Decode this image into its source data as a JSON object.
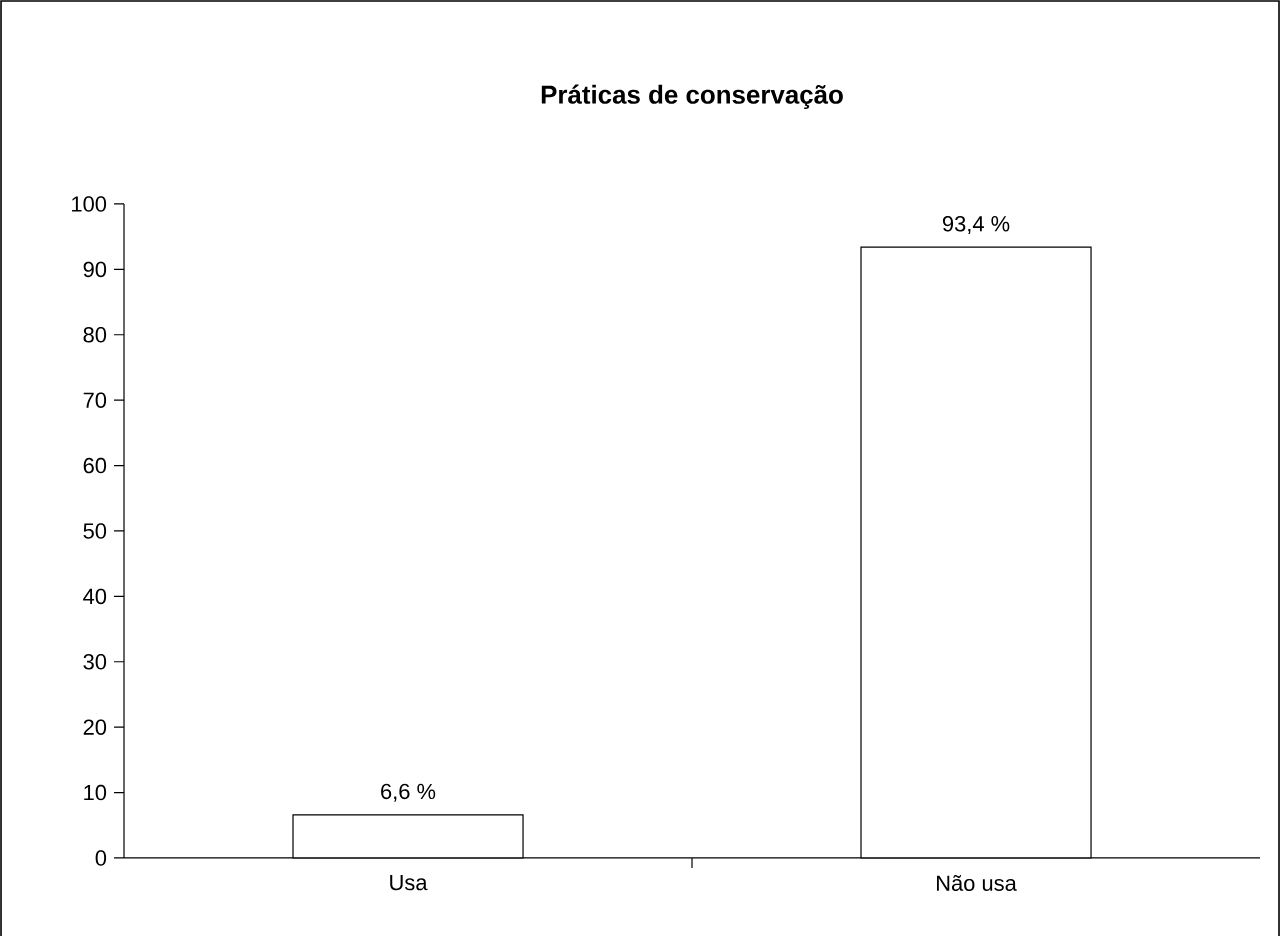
{
  "chart_data": {
    "type": "bar",
    "title": "Práticas de conservação",
    "categories": [
      "Usa",
      "Não usa"
    ],
    "values": [
      6.6,
      93.4
    ],
    "color": "#ffffff",
    "value_labels": [
      "6,6 %",
      "93,4 %"
    ],
    "ylim": [
      0,
      100
    ],
    "yticks": [
      0,
      10,
      20,
      30,
      40,
      50,
      60,
      70,
      80,
      90,
      100
    ],
    "grid": false
  }
}
